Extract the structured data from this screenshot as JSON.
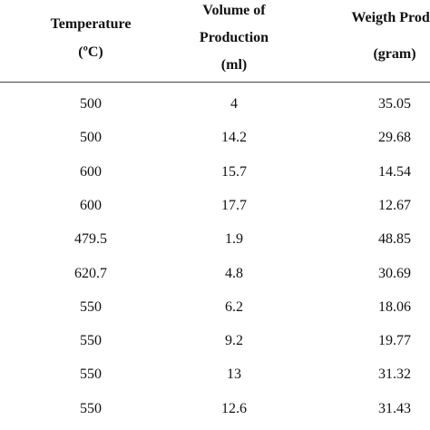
{
  "table": {
    "header": [
      [
        "Temperature",
        "(ºC)"
      ],
      [
        "Volume of",
        "Production",
        "(ml)"
      ],
      [
        "Weigth Produ",
        "(gram)"
      ]
    ],
    "rows": [
      [
        "500",
        "4",
        "35.05"
      ],
      [
        "500",
        "14.2",
        "29.68"
      ],
      [
        "600",
        "15.7",
        "14.54"
      ],
      [
        "600",
        "17.7",
        "12.67"
      ],
      [
        "479.5",
        "1.9",
        "48.85"
      ],
      [
        "620.7",
        "4.8",
        "30.69"
      ],
      [
        "550",
        "6.2",
        "18.06"
      ],
      [
        "550",
        "9.2",
        "19.77"
      ],
      [
        "550",
        "13",
        "31.32"
      ],
      [
        "550",
        "12.6",
        "31.43"
      ]
    ]
  }
}
